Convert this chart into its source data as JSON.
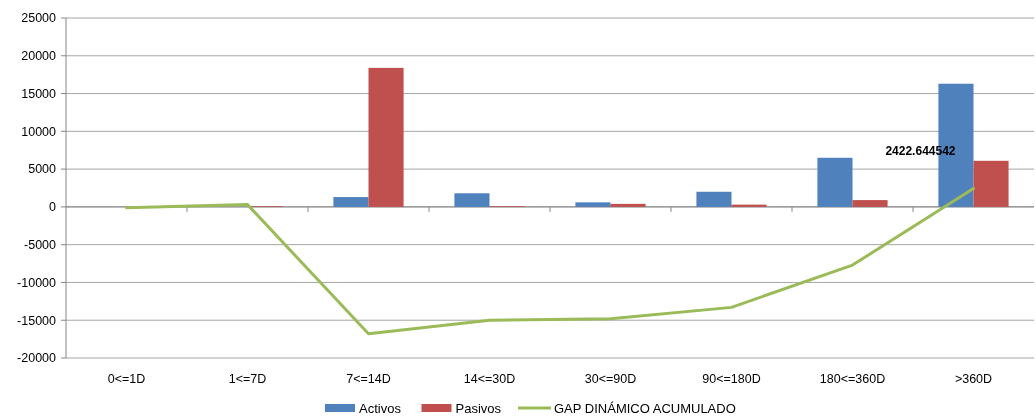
{
  "chart_data": {
    "type": "bar",
    "categories": [
      "0<=1D",
      "1<=7D",
      "7<=14D",
      "14<=30D",
      "30<=90D",
      "90<=180D",
      "180<=360D",
      ">360D"
    ],
    "series": [
      {
        "name": "Activos",
        "color": "#4f81bd",
        "values": [
          0,
          0,
          1300,
          1800,
          600,
          2000,
          6500,
          16300
        ]
      },
      {
        "name": "Pasivos",
        "color": "#c0504d",
        "values": [
          0,
          100,
          18400,
          100,
          400,
          300,
          900,
          6100
        ]
      },
      {
        "name": "GAP DINÁMICO ACUMULADO",
        "type": "line",
        "color": "#9bbb59",
        "values": [
          -100,
          300,
          -16800,
          -15000,
          -14800,
          -13300,
          -7700,
          2422.644542
        ],
        "value_labels": [
          null,
          null,
          null,
          null,
          null,
          null,
          null,
          "2422.644542"
        ]
      }
    ],
    "ylim": [
      -20000,
      25000
    ],
    "yticks": [
      -20000,
      -15000,
      -10000,
      -5000,
      0,
      5000,
      10000,
      15000,
      20000,
      25000
    ],
    "grid": "y",
    "legend": "bottom"
  }
}
